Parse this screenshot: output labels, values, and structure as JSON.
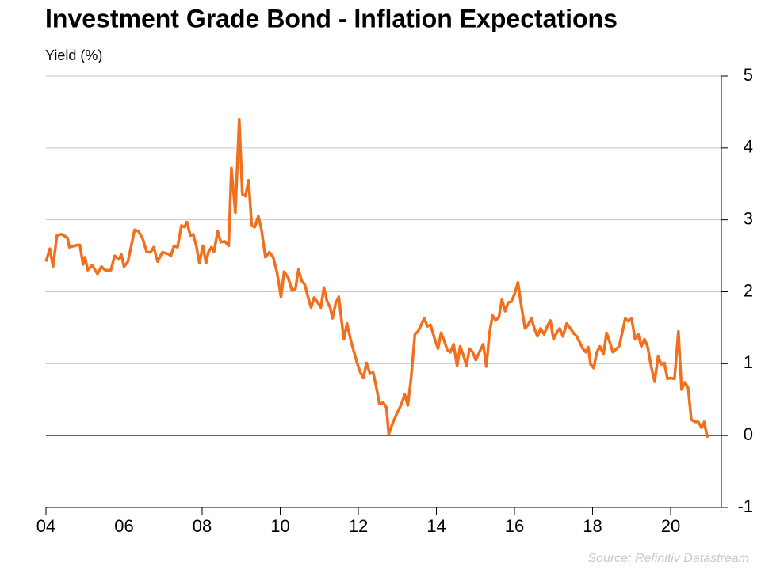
{
  "chart_data": {
    "type": "line",
    "title": "Investment Grade Bond - Inflation Expectations",
    "y_axis_label": "Yield (%)",
    "source": "Source: Refinitiv Datastream",
    "xlim": [
      4,
      21.3
    ],
    "xticks": [
      {
        "value": 4,
        "label": "04"
      },
      {
        "value": 6,
        "label": "06"
      },
      {
        "value": 8,
        "label": "08"
      },
      10,
      12,
      14,
      16,
      18,
      20
    ],
    "ylim": [
      -1,
      5
    ],
    "yticks": [
      -1,
      0,
      1,
      2,
      3,
      4,
      5
    ],
    "grid": true,
    "y_axis_side": "right",
    "x": [
      4.0,
      4.1,
      4.18,
      4.28,
      4.4,
      4.55,
      4.6,
      4.8,
      4.87,
      4.95,
      5.0,
      5.07,
      5.18,
      5.32,
      5.42,
      5.52,
      5.66,
      5.76,
      5.87,
      5.93,
      6.0,
      6.1,
      6.27,
      6.37,
      6.47,
      6.58,
      6.68,
      6.76,
      6.86,
      6.98,
      7.12,
      7.2,
      7.28,
      7.37,
      7.47,
      7.55,
      7.61,
      7.7,
      7.77,
      7.85,
      7.93,
      8.02,
      8.1,
      8.16,
      8.24,
      8.3,
      8.4,
      8.48,
      8.58,
      8.68,
      8.75,
      8.85,
      8.95,
      9.03,
      9.11,
      9.19,
      9.27,
      9.35,
      9.44,
      9.52,
      9.62,
      9.72,
      9.82,
      9.92,
      10.02,
      10.1,
      10.2,
      10.3,
      10.39,
      10.47,
      10.55,
      10.63,
      10.71,
      10.79,
      10.87,
      10.96,
      11.04,
      11.12,
      11.2,
      11.28,
      11.34,
      11.42,
      11.5,
      11.56,
      11.63,
      11.71,
      11.81,
      11.89,
      11.97,
      12.05,
      12.13,
      12.21,
      12.3,
      12.38,
      12.46,
      12.54,
      12.64,
      12.72,
      12.78,
      12.88,
      12.98,
      13.09,
      13.19,
      13.27,
      13.35,
      13.45,
      13.53,
      13.61,
      13.69,
      13.77,
      13.85,
      13.96,
      14.04,
      14.12,
      14.2,
      14.28,
      14.36,
      14.44,
      14.53,
      14.61,
      14.69,
      14.77,
      14.85,
      14.93,
      15.01,
      15.1,
      15.2,
      15.28,
      15.36,
      15.44,
      15.52,
      15.6,
      15.68,
      15.76,
      15.84,
      15.92,
      16.01,
      16.09,
      16.17,
      16.27,
      16.35,
      16.43,
      16.51,
      16.59,
      16.67,
      16.76,
      16.84,
      16.92,
      17.0,
      17.08,
      17.16,
      17.24,
      17.34,
      17.43,
      17.51,
      17.59,
      17.67,
      17.75,
      17.83,
      17.89,
      17.95,
      18.03,
      18.11,
      18.19,
      18.28,
      18.36,
      18.44,
      18.52,
      18.6,
      18.68,
      18.76,
      18.84,
      18.92,
      19.0,
      19.09,
      19.17,
      19.25,
      19.33,
      19.41,
      19.49,
      19.59,
      19.68,
      19.76,
      19.84,
      19.92,
      20.0,
      20.1,
      20.2,
      20.28,
      20.37,
      20.45,
      20.53,
      20.63,
      20.71,
      20.79,
      20.86,
      20.94
    ],
    "series": [
      {
        "color": "#f26f1e",
        "values": [
          2.42,
          2.6,
          2.35,
          2.78,
          2.8,
          2.75,
          2.62,
          2.65,
          2.65,
          2.38,
          2.48,
          2.3,
          2.37,
          2.25,
          2.35,
          2.3,
          2.3,
          2.5,
          2.45,
          2.52,
          2.35,
          2.42,
          2.86,
          2.84,
          2.75,
          2.55,
          2.55,
          2.62,
          2.42,
          2.55,
          2.53,
          2.5,
          2.64,
          2.62,
          2.92,
          2.9,
          2.97,
          2.78,
          2.8,
          2.64,
          2.4,
          2.64,
          2.4,
          2.55,
          2.62,
          2.55,
          2.84,
          2.69,
          2.7,
          2.64,
          3.72,
          3.1,
          4.4,
          3.36,
          3.33,
          3.55,
          2.92,
          2.9,
          3.05,
          2.86,
          2.48,
          2.55,
          2.48,
          2.26,
          1.93,
          2.28,
          2.2,
          2.02,
          2.04,
          2.31,
          2.15,
          2.1,
          1.93,
          1.78,
          1.92,
          1.85,
          1.78,
          2.06,
          1.87,
          1.78,
          1.63,
          1.84,
          1.93,
          1.65,
          1.34,
          1.56,
          1.32,
          1.16,
          1.01,
          0.88,
          0.8,
          1.01,
          0.86,
          0.88,
          0.68,
          0.44,
          0.46,
          0.39,
          0.02,
          0.17,
          0.3,
          0.42,
          0.57,
          0.42,
          0.79,
          1.41,
          1.45,
          1.54,
          1.63,
          1.52,
          1.54,
          1.34,
          1.21,
          1.43,
          1.32,
          1.19,
          1.16,
          1.27,
          0.97,
          1.24,
          1.12,
          0.97,
          1.21,
          1.16,
          1.05,
          1.16,
          1.27,
          0.96,
          1.43,
          1.67,
          1.6,
          1.65,
          1.89,
          1.73,
          1.85,
          1.86,
          1.98,
          2.13,
          1.82,
          1.49,
          1.54,
          1.63,
          1.49,
          1.38,
          1.49,
          1.41,
          1.52,
          1.6,
          1.34,
          1.43,
          1.49,
          1.38,
          1.56,
          1.49,
          1.43,
          1.38,
          1.3,
          1.21,
          1.16,
          1.23,
          0.99,
          0.94,
          1.16,
          1.24,
          1.13,
          1.43,
          1.3,
          1.16,
          1.2,
          1.24,
          1.43,
          1.63,
          1.59,
          1.63,
          1.34,
          1.41,
          1.24,
          1.34,
          1.24,
          0.99,
          0.75,
          1.1,
          0.99,
          1.01,
          0.79,
          0.8,
          0.79,
          1.45,
          0.64,
          0.74,
          0.66,
          0.22,
          0.19,
          0.19,
          0.11,
          0.19,
          -0.03
        ]
      }
    ]
  }
}
